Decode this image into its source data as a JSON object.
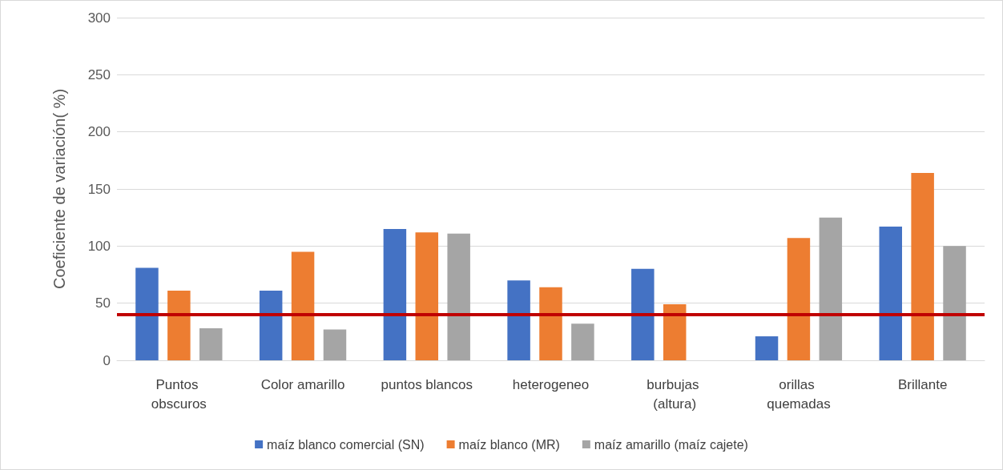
{
  "chart_data": {
    "type": "bar",
    "ylabel": "Coeficiente de variación( %)",
    "categories": [
      "Puntos obscuros",
      "Color amarillo",
      "puntos blancos",
      "heterogeneo",
      "burbujas (altura)",
      "orillas quemadas",
      "Brillante"
    ],
    "series": [
      {
        "name": "maíz blanco comercial (SN)",
        "color": "#4472c4",
        "values": [
          81,
          61,
          115,
          70,
          80,
          21,
          117
        ]
      },
      {
        "name": "maíz blanco (MR)",
        "color": "#ed7d31",
        "values": [
          61,
          95,
          112,
          64,
          49,
          107,
          164
        ]
      },
      {
        "name": "maíz amarillo (maíz cajete)",
        "color": "#a5a5a5",
        "values": [
          28,
          27,
          111,
          32,
          null,
          125,
          100
        ]
      }
    ],
    "ylim": [
      0,
      300
    ],
    "yticks": [
      0,
      50,
      100,
      150,
      200,
      250,
      300
    ],
    "grid": "y",
    "legend": "bottom",
    "ref_lines": [
      {
        "axis": "y",
        "value": 40,
        "color": "#c00000",
        "line_style": "solid"
      }
    ]
  }
}
